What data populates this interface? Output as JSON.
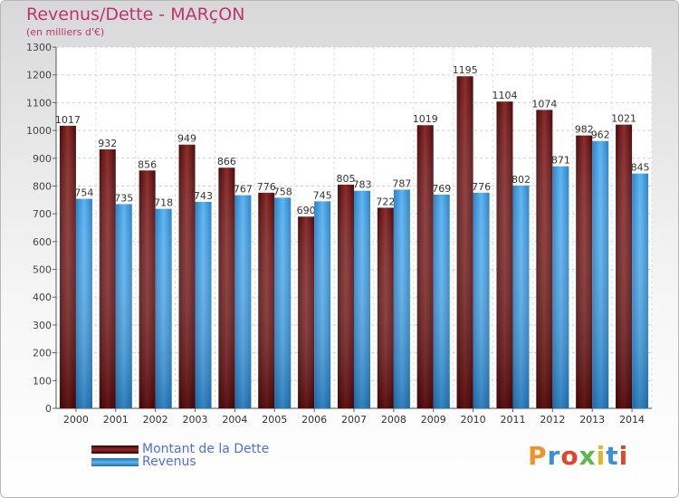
{
  "header": {
    "title": "Revenus/Dette - MARçON",
    "subtitle": "(en milliers d'€)"
  },
  "legend": {
    "items": [
      {
        "label": "Montant de la Dette",
        "color": "#7a1a1a"
      },
      {
        "label": "Revenus",
        "color": "#4aa3e6"
      }
    ]
  },
  "logo": {
    "text": "Proxiti"
  },
  "chart_data": {
    "type": "bar",
    "title": "Revenus/Dette - MARçON",
    "subtitle": "(en milliers d'€)",
    "categories": [
      "2000",
      "2001",
      "2002",
      "2003",
      "2004",
      "2005",
      "2006",
      "2007",
      "2008",
      "2009",
      "2010",
      "2011",
      "2012",
      "2013",
      "2014"
    ],
    "series": [
      {
        "name": "Montant de la Dette",
        "color": "#7a1a1a",
        "values": [
          1017,
          932,
          856,
          949,
          866,
          776,
          690,
          805,
          722,
          1019,
          1195,
          1104,
          1074,
          982,
          1021
        ]
      },
      {
        "name": "Revenus",
        "color": "#4aa3e6",
        "values": [
          754,
          735,
          718,
          743,
          767,
          758,
          745,
          783,
          787,
          769,
          776,
          802,
          871,
          962,
          845
        ]
      }
    ],
    "ylim": [
      0,
      1300
    ],
    "yticks": [
      0,
      100,
      200,
      300,
      400,
      500,
      600,
      700,
      800,
      900,
      1000,
      1100,
      1200,
      1300
    ],
    "grid": true,
    "legend_position": "bottom-left"
  }
}
